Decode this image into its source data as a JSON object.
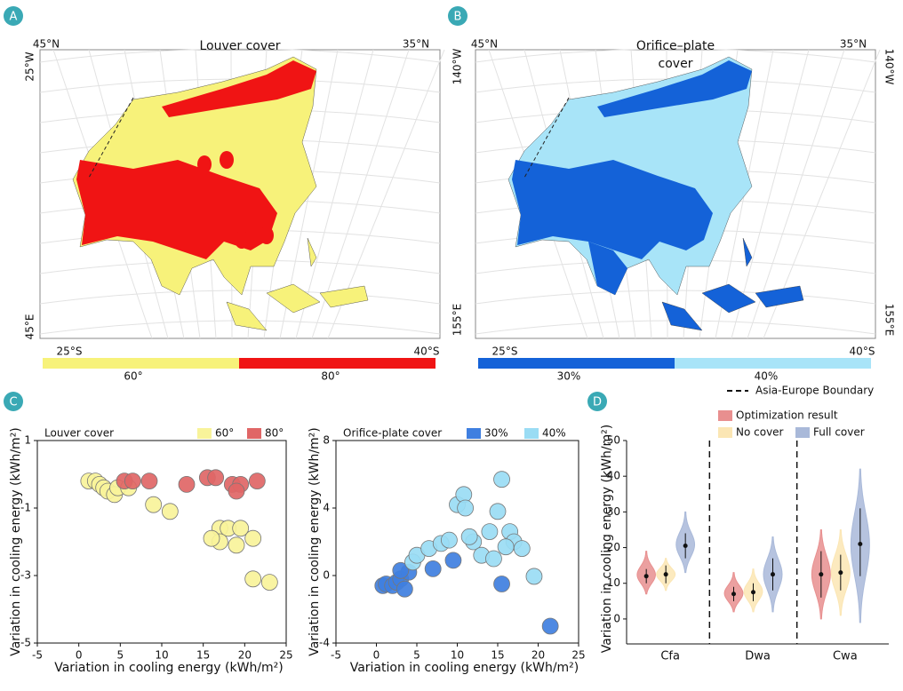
{
  "chart_data": [
    {
      "type": "map",
      "panel": "A",
      "title": [
        "Louver cover"
      ],
      "corner_labels": [
        "45°N",
        "35°N",
        "25°W",
        "45°E"
      ],
      "range_labels": [
        "25°S",
        "40°S"
      ],
      "legend": [
        {
          "name": "60°",
          "color": "#f7f27a"
        },
        {
          "name": "80°",
          "color": "#f01414"
        }
      ]
    },
    {
      "type": "map",
      "panel": "B",
      "title": [
        "Orifice–plate",
        "cover"
      ],
      "corner_labels": [
        "45°N",
        "35°N",
        "140°W",
        "140°W",
        "155°E",
        "155°E"
      ],
      "range_labels": [
        "25°S",
        "40°S"
      ],
      "legend": [
        {
          "name": "30%",
          "color": "#1462d8"
        },
        {
          "name": "40%",
          "color": "#a8e4f8"
        }
      ],
      "boundary_label": "Asia-Europe Boundary"
    },
    {
      "type": "scatter",
      "panel": "C",
      "title": "Louver cover",
      "xlabel": "Variation in cooling energy (kWh/m²)",
      "ylabel": "Variation in cooling energy (kWh/m²)",
      "xlim": [
        -5,
        25
      ],
      "xticks": [
        -5,
        0,
        5,
        10,
        15,
        20,
        25
      ],
      "ylim": [
        -5,
        1
      ],
      "yticks": [
        -5,
        -3,
        -1,
        1
      ],
      "series": [
        {
          "name": "60°",
          "color": "#f8f39a",
          "x": [
            1.2,
            2,
            2.5,
            3,
            3.5,
            4.3,
            4.7,
            6,
            9,
            11,
            17,
            18,
            17,
            19,
            21,
            16,
            19.5,
            21,
            23
          ],
          "y": [
            -0.2,
            -0.2,
            -0.3,
            -0.4,
            -0.5,
            -0.6,
            -0.4,
            -0.4,
            -0.9,
            -1.1,
            -1.6,
            -1.6,
            -2.0,
            -2.1,
            -3.1,
            -1.9,
            -1.6,
            -1.9,
            -3.2
          ]
        },
        {
          "name": "80°",
          "color": "#e06666",
          "x": [
            5.5,
            6.5,
            8.5,
            13,
            15.5,
            16.5,
            18.5,
            19.5,
            21.5,
            19
          ],
          "y": [
            -0.2,
            -0.2,
            -0.2,
            -0.3,
            -0.1,
            -0.1,
            -0.3,
            -0.3,
            -0.2,
            -0.5
          ]
        }
      ]
    },
    {
      "type": "scatter",
      "title": "Orifice-plate cover",
      "xlabel": "Variation in cooling energy (kWh/m²)",
      "ylabel": "Variation in cooling energy (kWh/m²)",
      "xlim": [
        -5,
        25
      ],
      "xticks": [
        -5,
        0,
        5,
        10,
        15,
        20,
        25
      ],
      "ylim": [
        -4,
        8
      ],
      "yticks": [
        -4,
        0,
        4,
        8
      ],
      "series": [
        {
          "name": "30%",
          "color": "#3f7fe0",
          "x": [
            0.8,
            1.2,
            2,
            2.5,
            3,
            3.5,
            4,
            7,
            9.5,
            15.5,
            21.5,
            3
          ],
          "y": [
            -0.6,
            -0.5,
            -0.6,
            -0.4,
            -0.2,
            -0.8,
            0.2,
            0.4,
            0.9,
            -0.5,
            -3.0,
            0.3
          ]
        },
        {
          "name": "40%",
          "color": "#9adcf4",
          "x": [
            4.5,
            5,
            6.5,
            8,
            9,
            10,
            10.8,
            11,
            12,
            13,
            14,
            15,
            15.5,
            16.5,
            17,
            18,
            19.5,
            14.5,
            11.5,
            16
          ],
          "y": [
            0.8,
            1.2,
            1.6,
            1.9,
            2.1,
            4.2,
            4.8,
            4.0,
            2.0,
            1.2,
            2.6,
            3.8,
            5.7,
            2.6,
            2.0,
            1.6,
            -0.05,
            1.0,
            2.3,
            1.7
          ]
        }
      ]
    },
    {
      "type": "violin",
      "panel": "D",
      "ylabel": "Variation in cooling energy (kWh/m²)",
      "categories": [
        "Cfa",
        "Dwa",
        "Cwa"
      ],
      "ylim": [
        -5,
        50
      ],
      "yticks": [
        0,
        10,
        20,
        30,
        40,
        50
      ],
      "series": [
        {
          "name": "Optimization result",
          "color": "#e88f8f",
          "values": [
            12,
            7,
            12.5
          ],
          "min": [
            7,
            2,
            0
          ],
          "max": [
            19,
            13,
            25
          ],
          "q1": [
            10,
            5,
            6
          ],
          "q3": [
            14,
            9,
            19
          ]
        },
        {
          "name": "No cover",
          "color": "#fbe6b4",
          "values": [
            12.5,
            7.5,
            13
          ],
          "min": [
            8,
            2,
            1
          ],
          "max": [
            17,
            14,
            25
          ],
          "q1": [
            10,
            5,
            8
          ],
          "q3": [
            15,
            10,
            18
          ]
        },
        {
          "name": "Full cover",
          "color": "#a9b9d9",
          "values": [
            20.5,
            12.5,
            21
          ],
          "min": [
            13,
            2,
            -1
          ],
          "max": [
            30,
            23,
            42
          ],
          "q1": [
            17,
            8,
            12
          ],
          "q3": [
            24,
            17,
            31
          ]
        }
      ]
    }
  ]
}
